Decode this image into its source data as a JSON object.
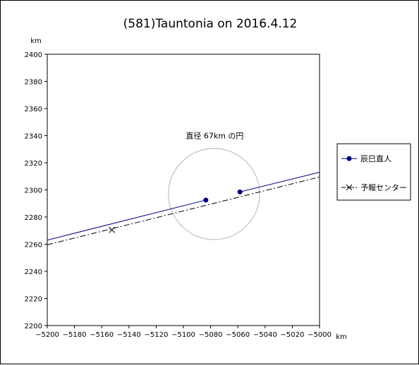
{
  "chart_data": {
    "type": "line",
    "title": "(581)Tauntonia on 2016.4.12",
    "xlabel": "km",
    "ylabel": "km",
    "xlim": [
      -5200,
      -5000
    ],
    "ylim": [
      2200,
      2400
    ],
    "xticks": [
      -5200,
      -5180,
      -5160,
      -5140,
      -5120,
      -5100,
      -5080,
      -5060,
      -5040,
      -5020,
      -5000
    ],
    "yticks": [
      2200,
      2220,
      2240,
      2260,
      2280,
      2300,
      2320,
      2340,
      2360,
      2380,
      2400
    ],
    "grid": false,
    "legend_position": "right",
    "series": [
      {
        "name": "辰巳直人",
        "color": "#000080",
        "style": "solid",
        "segments": [
          [
            [
              -5200,
              2263
            ],
            [
              -5083.5,
              2292.5
            ]
          ],
          [
            [
              -5058.5,
              2298.5
            ],
            [
              -5000,
              2313
            ]
          ]
        ],
        "markers": [
          [
            -5083.5,
            2292.5
          ],
          [
            -5058.5,
            2298.5
          ]
        ]
      },
      {
        "name": "予報センター",
        "color": "#000000",
        "style": "dashdot",
        "segments": [
          [
            [
              -5200,
              2259.5
            ],
            [
              -5000,
              2309.5
            ]
          ]
        ],
        "markers": [
          [
            -5152.5,
            2270.5
          ]
        ]
      }
    ],
    "circle": {
      "center": [
        -5077.5,
        2297
      ],
      "radius": 33.5,
      "color": "#c0c0c0"
    },
    "annotation": {
      "text": "直径 67km の円",
      "position": [
        -5077,
        2340
      ]
    }
  }
}
